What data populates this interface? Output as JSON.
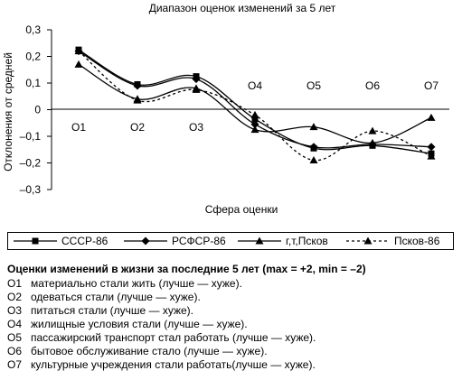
{
  "chart_data": {
    "type": "line",
    "title": "Диапазон оценок изменений за 5 лет",
    "xlabel": "Сфера оценки",
    "ylabel": "Отклонения от средней",
    "categories": [
      "O1",
      "O2",
      "O3",
      "O4",
      "O5",
      "O6",
      "O7"
    ],
    "ylim": [
      -0.3,
      0.3
    ],
    "yticks": [
      0.3,
      0.2,
      0.1,
      0,
      -0.1,
      -0.2,
      -0.3
    ],
    "ytick_labels": [
      "0,3",
      "0,2",
      "0,1",
      "0",
      "–0,1",
      "–0,2",
      "–0,3"
    ],
    "grid": false,
    "legend_position": "bottom",
    "series": [
      {
        "name": "СССР-86",
        "marker": "square",
        "dash": "solid",
        "values": [
          0.225,
          0.095,
          0.125,
          -0.035,
          -0.145,
          -0.135,
          -0.165
        ]
      },
      {
        "name": "РСФСР-86",
        "marker": "diamond",
        "dash": "solid",
        "values": [
          0.22,
          0.09,
          0.115,
          -0.055,
          -0.14,
          -0.13,
          -0.14
        ]
      },
      {
        "name": "г,т,Псков",
        "marker": "triangle",
        "dash": "solid",
        "values": [
          0.17,
          0.04,
          0.08,
          -0.075,
          -0.065,
          -0.125,
          -0.03
        ]
      },
      {
        "name": "Псков-86",
        "marker": "triangle",
        "dash": "dotted",
        "values": [
          0.22,
          0.035,
          0.075,
          -0.02,
          -0.19,
          -0.08,
          -0.175
        ]
      }
    ]
  },
  "notes": {
    "title": "Оценки изменений в жизни за последние 5 лет (max = +2, min = –2)",
    "items": [
      {
        "code": "O1",
        "text": "материально стали жить (лучше — хуже)."
      },
      {
        "code": "O2",
        "text": "одеваться стали (лучше — хуже)."
      },
      {
        "code": "O3",
        "text": "питаться стали (лучше — хуже)."
      },
      {
        "code": "O4",
        "text": "жилищные условия стали (лучше — хуже)."
      },
      {
        "code": "O5",
        "text": "пассажирский транспорт стал работать (лучше — хуже)."
      },
      {
        "code": "O6",
        "text": "бытовое обслуживание стало (лучше — хуже)."
      },
      {
        "code": "O7",
        "text": "культурные учреждения стали работать(лучше — хуже)."
      }
    ]
  }
}
